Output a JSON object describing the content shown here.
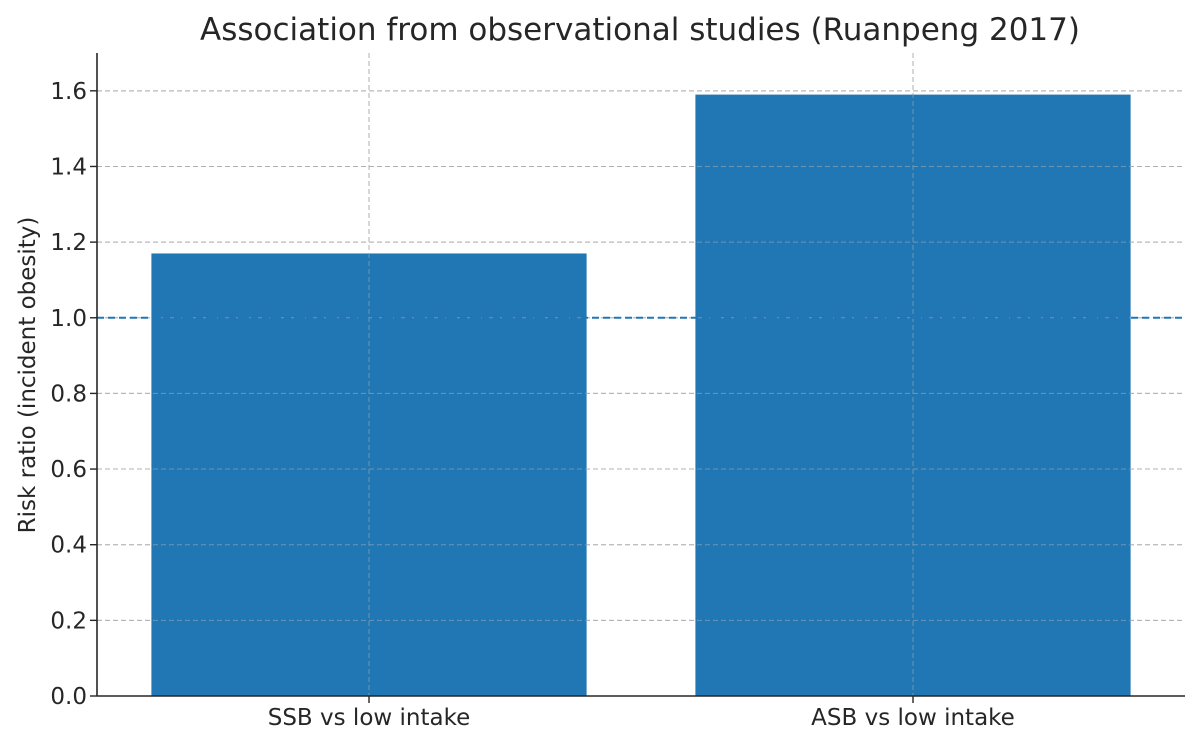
{
  "chart_data": {
    "type": "bar",
    "title": "Association from observational studies (Ruanpeng 2017)",
    "xlabel": "",
    "ylabel": "Risk ratio (incident obesity)",
    "categories": [
      "SSB vs low intake",
      "ASB vs low intake"
    ],
    "values": [
      1.17,
      1.59
    ],
    "ylim": [
      0,
      1.7
    ],
    "yticks": [
      0.0,
      0.2,
      0.4,
      0.6,
      0.8,
      1.0,
      1.2,
      1.4,
      1.6
    ],
    "ytick_labels": [
      "0.0",
      "0.2",
      "0.4",
      "0.6",
      "0.8",
      "1.0",
      "1.2",
      "1.4",
      "1.6"
    ],
    "reference_line": 1.0,
    "grid": true,
    "bar_color": "#2077b4",
    "reference_line_color": "#2077b4"
  }
}
